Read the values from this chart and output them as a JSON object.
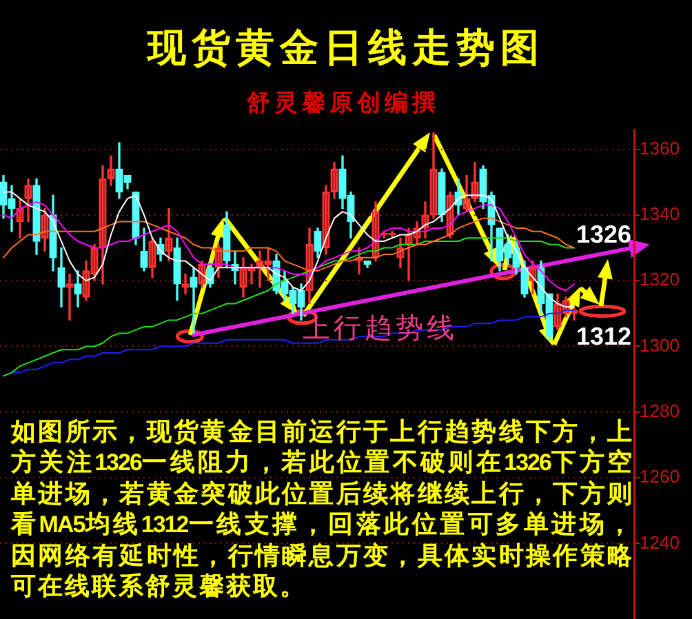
{
  "chart_data": {
    "type": "candlestick",
    "title": "现货黄金日线走势图",
    "subtitle": "舒灵馨原创编撰",
    "categories": [
      null,
      null,
      null,
      null,
      null,
      null,
      null,
      null,
      null,
      null,
      null,
      null,
      null,
      null,
      null,
      null,
      null,
      null,
      null,
      null,
      null,
      null,
      null,
      null,
      null,
      null,
      null,
      null,
      null,
      null,
      null,
      null,
      null,
      null,
      null,
      null,
      null,
      null,
      null,
      null,
      null,
      null,
      null,
      null,
      null,
      null,
      null,
      null,
      null,
      null,
      null,
      null,
      null,
      null,
      null,
      null,
      null,
      null,
      null,
      null,
      null,
      null,
      null,
      null,
      null,
      null,
      null,
      null,
      null,
      null
    ],
    "ohlc": [
      [
        1350,
        1352,
        1339,
        1343
      ],
      [
        1345,
        1349,
        1335,
        1342
      ],
      [
        1338,
        1345,
        1333,
        1342
      ],
      [
        1345,
        1351,
        1338,
        1349
      ],
      [
        1349,
        1351,
        1328,
        1332
      ],
      [
        1333,
        1342,
        1329,
        1340
      ],
      [
        1340,
        1346,
        1323,
        1327
      ],
      [
        1324,
        1330,
        1312,
        1318
      ],
      [
        1318,
        1322,
        1308,
        1319
      ],
      [
        1319,
        1323,
        1312,
        1316
      ],
      [
        1315,
        1326,
        1314,
        1323
      ],
      [
        1322,
        1331,
        1320,
        1330
      ],
      [
        1330,
        1355,
        1319,
        1351
      ],
      [
        1351,
        1358,
        1349,
        1354
      ],
      [
        1354,
        1362,
        1345,
        1347
      ],
      [
        1352,
        1352,
        1348,
        1350
      ],
      [
        1347,
        1347,
        1331,
        1333
      ],
      [
        1329,
        1336,
        1323,
        1324
      ],
      [
        1324,
        1333,
        1321,
        1332
      ],
      [
        1331,
        1333,
        1326,
        1328
      ],
      [
        1329,
        1342,
        1326,
        1333
      ],
      [
        1330,
        1333,
        1314,
        1319
      ],
      [
        1318,
        1322,
        1316,
        1319
      ],
      [
        1321,
        1324,
        1304,
        1318
      ],
      [
        1319,
        1326,
        1318,
        1325
      ],
      [
        1324,
        1326,
        1318,
        1319
      ],
      [
        1324,
        1331,
        1321,
        1330
      ],
      [
        1337,
        1341,
        1324,
        1326
      ],
      [
        1325,
        1329,
        1319,
        1323
      ],
      [
        1318,
        1327,
        1315,
        1324
      ],
      [
        1323,
        1325,
        1319,
        1324
      ],
      [
        1324,
        1329,
        1318,
        1326
      ],
      [
        1325,
        1330,
        1320,
        1326
      ],
      [
        1326,
        1328,
        1316,
        1317
      ],
      [
        1320,
        1323,
        1314,
        1316
      ],
      [
        1317,
        1318,
        1310,
        1313
      ],
      [
        1317,
        1319,
        1308,
        1312
      ],
      [
        1317,
        1336,
        1313,
        1331
      ],
      [
        1335,
        1336,
        1327,
        1329
      ],
      [
        1330,
        1349,
        1328,
        1347
      ],
      [
        1347,
        1356,
        1345,
        1354
      ],
      [
        1354,
        1358,
        1342,
        1345
      ],
      [
        1346,
        1347,
        1333,
        1338
      ],
      [
        1326,
        1330,
        1322,
        1327
      ],
      [
        1326,
        1326,
        1324,
        1325
      ],
      [
        1327,
        1344,
        1326,
        1341
      ],
      [
        1334,
        1335,
        1333,
        1334
      ],
      [
        1334,
        1335,
        1333,
        1334
      ],
      [
        1327,
        1333,
        1324,
        1330
      ],
      [
        1331,
        1336,
        1320,
        1334
      ],
      [
        1333,
        1338,
        1331,
        1336
      ],
      [
        1336,
        1344,
        1333,
        1340
      ],
      [
        1340,
        1365,
        1339,
        1354
      ],
      [
        1353,
        1354,
        1338,
        1340
      ],
      [
        1334,
        1347,
        1333,
        1346
      ],
      [
        1347,
        1351,
        1340,
        1343
      ],
      [
        1342,
        1352,
        1341,
        1345
      ],
      [
        1345,
        1356,
        1344,
        1350
      ],
      [
        1354,
        1355,
        1342,
        1344
      ],
      [
        1346,
        1347,
        1326,
        1337
      ],
      [
        1336,
        1336,
        1323,
        1326
      ],
      [
        1331,
        1334,
        1325,
        1327
      ],
      [
        1330,
        1332,
        1322,
        1324
      ],
      [
        1324,
        1326,
        1315,
        1316
      ],
      [
        1320,
        1326,
        1316,
        1324
      ],
      [
        1324,
        1326,
        1310,
        1313
      ],
      [
        1316,
        1316,
        1302,
        1303
      ],
      [
        1306,
        1316,
        1305,
        1313
      ],
      [
        1310,
        1315,
        1309,
        1314
      ],
      [
        1310,
        1312,
        1308,
        1311
      ]
    ],
    "colors": [
      "#54fcfc",
      "#54fcfc",
      "#ff3232",
      "#ff3232",
      "#54fcfc",
      "#ff3232",
      "#54fcfc",
      "#54fcfc",
      "#ff3232",
      "#54fcfc",
      "#ff3232",
      "#ff3232",
      "#ff3232",
      "#ff3232",
      "#54fcfc",
      "#54fcfc",
      "#54fcfc",
      "#54fcfc",
      "#ff3232",
      "#54fcfc",
      "#ff3232",
      "#54fcfc",
      "#ff3232",
      "#54fcfc",
      "#ff3232",
      "#54fcfc",
      "#ff3232",
      "#54fcfc",
      "#54fcfc",
      "#ff3232",
      "#ff3232",
      "#ff3232",
      "#ff3232",
      "#54fcfc",
      "#54fcfc",
      "#54fcfc",
      "#54fcfc",
      "#ff3232",
      "#54fcfc",
      "#ff3232",
      "#ff3232",
      "#54fcfc",
      "#54fcfc",
      "#ff3232",
      "#54fcfc",
      "#ff3232",
      "#ff3232",
      "#ff3232",
      "#ff3232",
      "#ff3232",
      "#ff3232",
      "#ff3232",
      "#ff3232",
      "#54fcfc",
      "#ff3232",
      "#54fcfc",
      "#ff3232",
      "#ff3232",
      "#54fcfc",
      "#54fcfc",
      "#54fcfc",
      "#54fcfc",
      "#54fcfc",
      "#54fcfc",
      "#ff3232",
      "#54fcfc",
      "#54fcfc",
      "#ff3232",
      "#ff3232",
      "#ff3232"
    ],
    "series": [
      {
        "type": "line",
        "color": "#ffffff",
        "values": [
          1347,
          1347,
          1345,
          1343,
          1342,
          1341,
          1338,
          1332,
          1326,
          1322,
          1320,
          1321,
          1325,
          1334,
          1341,
          1345,
          1346,
          1340,
          1333,
          1329,
          1327,
          1326,
          1326,
          1324,
          1322,
          1320,
          1324,
          1324,
          1324,
          1324,
          1324,
          1324,
          1324,
          1322,
          1321,
          1318,
          1317,
          1320,
          1326,
          1333,
          1339,
          1341,
          1340,
          1337,
          1334,
          1332,
          1332,
          1333,
          1334,
          1334,
          1335,
          1337,
          1338,
          1340,
          1342,
          1345,
          1346,
          1346,
          1346,
          1345,
          1339,
          1333,
          1329,
          1324,
          1321,
          1318,
          1315,
          1313,
          1312,
          1312
        ]
      },
      {
        "type": "line",
        "color": "#ff00ff",
        "values": [
          1340,
          1339,
          1342,
          1343,
          1344,
          1343,
          1340,
          1337,
          1334,
          1332,
          1331,
          1330,
          1330,
          1331,
          1332,
          1332,
          1333,
          1334,
          1335,
          1336,
          1337,
          1335,
          1331,
          1327,
          1325,
          1325,
          1325,
          1325,
          1324,
          1324,
          1324,
          1324,
          1324,
          1324,
          1323,
          1322,
          1322,
          1322,
          1324,
          1326,
          1327,
          1328,
          1329,
          1329,
          1330,
          1332,
          1335,
          1336,
          1336,
          1335,
          1335,
          1335,
          1336,
          1336,
          1337,
          1340,
          1341,
          1342,
          1343,
          1343,
          1342,
          1338,
          1333,
          1328,
          1325,
          1323,
          1320,
          1318,
          1317,
          1319
        ]
      },
      {
        "type": "line",
        "color": "#ff7020",
        "values": [
          1327,
          1330,
          1332,
          1334,
          1334,
          1335,
          1335,
          1335,
          1335,
          1335,
          1335,
          1335,
          1336,
          1337,
          1338,
          1338,
          1338,
          1338,
          1337,
          1336,
          1335,
          1334,
          1333,
          1331,
          1330,
          1330,
          1329,
          1329,
          1329,
          1329,
          1330,
          1330,
          1330,
          1329,
          1326,
          1325,
          1324,
          1323,
          1323,
          1324,
          1325,
          1326,
          1326,
          1327,
          1327,
          1327,
          1328,
          1328,
          1329,
          1330,
          1331,
          1331,
          1332,
          1333,
          1334,
          1336,
          1337,
          1338,
          1339,
          1339,
          1338,
          1337,
          1336,
          1336,
          1335,
          1335,
          1334,
          1333,
          1331,
          1330
        ]
      },
      {
        "type": "line",
        "color": "#20e020",
        "values": [
          1291,
          1292,
          1294,
          1295,
          1296,
          1297,
          1298,
          1299,
          1299,
          1299,
          1300,
          1300,
          1301,
          1303,
          1304,
          1304,
          1305,
          1306,
          1306,
          1307,
          1308,
          1308,
          1309,
          1310,
          1310,
          1311,
          1312,
          1313,
          1313,
          1314,
          1315,
          1316,
          1317,
          1319,
          1320,
          1321,
          1322,
          1323,
          1324,
          1325,
          1326,
          1326,
          1327,
          1328,
          1329,
          1329,
          1330,
          1330,
          1331,
          1331,
          1331,
          1332,
          1332,
          1332,
          1332,
          1332,
          1333,
          1333,
          1333,
          1333,
          1333,
          1333,
          1332,
          1332,
          1332,
          1332,
          1331,
          1331,
          1330,
          1330
        ]
      },
      {
        "type": "line",
        "color": "#2020ff",
        "values": [
          1291,
          1292,
          1292,
          1293,
          1293,
          1294,
          1295,
          1295,
          1296,
          1296,
          1297,
          1297,
          1298,
          1298,
          1298,
          1299,
          1299,
          1299,
          1299,
          1300,
          1300,
          1300,
          1300,
          1301,
          1301,
          1301,
          1301,
          1302,
          1302,
          1302,
          1302,
          1302,
          1302,
          1302,
          1302,
          1301,
          1301,
          1301,
          1301,
          1302,
          1302,
          1302,
          1302,
          1303,
          1303,
          1303,
          1303,
          1304,
          1304,
          1304,
          1305,
          1305,
          1305,
          1305,
          1306,
          1306,
          1306,
          1307,
          1307,
          1307,
          1308,
          1308,
          1308,
          1309,
          1309,
          1309,
          1310,
          1310,
          1311,
          1311
        ]
      },
      {
        "type": "line",
        "name": "上行趋势线",
        "color": "#e020e0",
        "values": [
          null,
          null,
          null,
          null,
          null,
          null,
          null,
          null,
          null,
          null,
          null,
          null,
          null,
          null,
          null,
          null,
          null,
          null,
          null,
          null,
          null,
          null,
          null,
          1303.5,
          1304,
          1304.5,
          1305,
          1305.5,
          1306,
          1306.5,
          1307,
          1307.5,
          1308,
          1308.5,
          1309,
          1309.5,
          1310,
          1310.5,
          1311,
          1311.5,
          1312,
          1312.5,
          1313,
          1313.5,
          1314,
          1314.5,
          1315,
          1315.5,
          1316,
          1316.5,
          1317,
          1317.5,
          1318,
          1318.5,
          1319,
          1319.5,
          1320,
          1320.5,
          1321,
          1321.5,
          1322,
          1322.5,
          1323,
          1323.5,
          1324,
          1324.5,
          1325,
          1325.5,
          1326,
          1326.5
        ]
      }
    ],
    "ylim": [
      1217,
      1366
    ],
    "yticks": [
      1240,
      1260,
      1280,
      1300,
      1320,
      1340,
      1360
    ],
    "grid": "y",
    "tick_labels": "y",
    "annotations": [
      "1326",
      "1312",
      "如图所示，现货黄金目前运行于上行趋势线下方，上方关注1326一线阻力，若此位置不破则在1326下方空单进场，若黄金突破此位置后续将继续上行，下方则看MA5均线1312一线支撑，回落此位置可多单进场，因网络有延时性，行情瞬息万变，具体实时操作策略可在线联系舒灵馨获取。"
    ]
  }
}
